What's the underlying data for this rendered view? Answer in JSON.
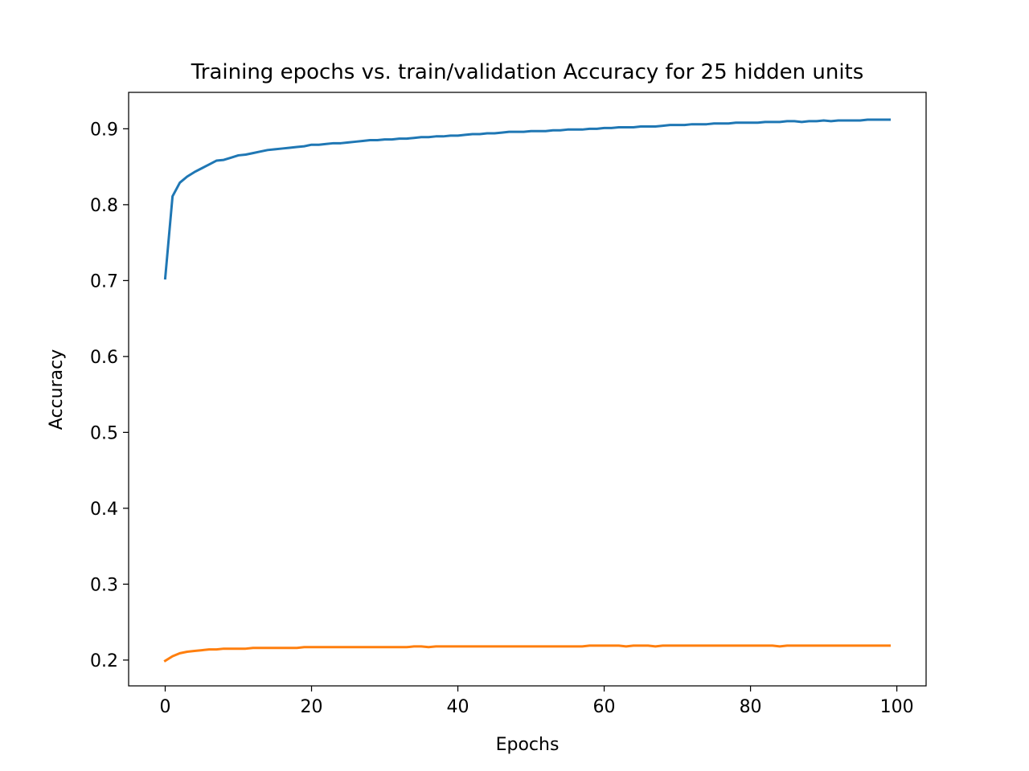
{
  "chart_data": {
    "type": "line",
    "title": "Training epochs vs. train/validation Accuracy for 25 hidden units",
    "xlabel": "Epochs",
    "ylabel": "Accuracy",
    "xlim": [
      -5,
      104
    ],
    "ylim": [
      0.166,
      0.948
    ],
    "xticks": [
      0,
      20,
      40,
      60,
      80,
      100
    ],
    "yticks": [
      0.2,
      0.3,
      0.4,
      0.5,
      0.6,
      0.7,
      0.8,
      0.9
    ],
    "xtick_labels": [
      "0",
      "20",
      "40",
      "60",
      "80",
      "100"
    ],
    "ytick_labels": [
      "0.2",
      "0.3",
      "0.4",
      "0.5",
      "0.6",
      "0.7",
      "0.8",
      "0.9"
    ],
    "grid": false,
    "legend": "none",
    "series": [
      {
        "color": "#1f77b4",
        "x": [
          0,
          1,
          2,
          3,
          4,
          5,
          6,
          7,
          8,
          9,
          10,
          11,
          12,
          13,
          14,
          15,
          16,
          17,
          18,
          19,
          20,
          21,
          22,
          23,
          24,
          25,
          26,
          27,
          28,
          29,
          30,
          31,
          32,
          33,
          34,
          35,
          36,
          37,
          38,
          39,
          40,
          41,
          42,
          43,
          44,
          45,
          46,
          47,
          48,
          49,
          50,
          51,
          52,
          53,
          54,
          55,
          56,
          57,
          58,
          59,
          60,
          61,
          62,
          63,
          64,
          65,
          66,
          67,
          68,
          69,
          70,
          71,
          72,
          73,
          74,
          75,
          76,
          77,
          78,
          79,
          80,
          81,
          82,
          83,
          84,
          85,
          86,
          87,
          88,
          89,
          90,
          91,
          92,
          93,
          94,
          95,
          96,
          97,
          98,
          99
        ],
        "values": [
          0.703,
          0.811,
          0.829,
          0.837,
          0.843,
          0.848,
          0.853,
          0.858,
          0.859,
          0.862,
          0.865,
          0.866,
          0.868,
          0.87,
          0.872,
          0.873,
          0.874,
          0.875,
          0.876,
          0.877,
          0.879,
          0.879,
          0.88,
          0.881,
          0.881,
          0.882,
          0.883,
          0.884,
          0.885,
          0.885,
          0.886,
          0.886,
          0.887,
          0.887,
          0.888,
          0.889,
          0.889,
          0.89,
          0.89,
          0.891,
          0.891,
          0.892,
          0.893,
          0.893,
          0.894,
          0.894,
          0.895,
          0.896,
          0.896,
          0.896,
          0.897,
          0.897,
          0.897,
          0.898,
          0.898,
          0.899,
          0.899,
          0.899,
          0.9,
          0.9,
          0.901,
          0.901,
          0.902,
          0.902,
          0.902,
          0.903,
          0.903,
          0.903,
          0.904,
          0.905,
          0.905,
          0.905,
          0.906,
          0.906,
          0.906,
          0.907,
          0.907,
          0.907,
          0.908,
          0.908,
          0.908,
          0.908,
          0.909,
          0.909,
          0.909,
          0.91,
          0.91,
          0.909,
          0.91,
          0.91,
          0.911,
          0.91,
          0.911,
          0.911,
          0.911,
          0.911,
          0.912,
          0.912,
          0.912,
          0.912
        ]
      },
      {
        "color": "#ff7f0e",
        "x": [
          0,
          1,
          2,
          3,
          4,
          5,
          6,
          7,
          8,
          9,
          10,
          11,
          12,
          13,
          14,
          15,
          16,
          17,
          18,
          19,
          20,
          21,
          22,
          23,
          24,
          25,
          26,
          27,
          28,
          29,
          30,
          31,
          32,
          33,
          34,
          35,
          36,
          37,
          38,
          39,
          40,
          41,
          42,
          43,
          44,
          45,
          46,
          47,
          48,
          49,
          50,
          51,
          52,
          53,
          54,
          55,
          56,
          57,
          58,
          59,
          60,
          61,
          62,
          63,
          64,
          65,
          66,
          67,
          68,
          69,
          70,
          71,
          72,
          73,
          74,
          75,
          76,
          77,
          78,
          79,
          80,
          81,
          82,
          83,
          84,
          85,
          86,
          87,
          88,
          89,
          90,
          91,
          92,
          93,
          94,
          95,
          96,
          97,
          98,
          99
        ],
        "values": [
          0.199,
          0.205,
          0.209,
          0.211,
          0.212,
          0.213,
          0.214,
          0.214,
          0.215,
          0.215,
          0.215,
          0.215,
          0.216,
          0.216,
          0.216,
          0.216,
          0.216,
          0.216,
          0.216,
          0.217,
          0.217,
          0.217,
          0.217,
          0.217,
          0.217,
          0.217,
          0.217,
          0.217,
          0.217,
          0.217,
          0.217,
          0.217,
          0.217,
          0.217,
          0.218,
          0.218,
          0.217,
          0.218,
          0.218,
          0.218,
          0.218,
          0.218,
          0.218,
          0.218,
          0.218,
          0.218,
          0.218,
          0.218,
          0.218,
          0.218,
          0.218,
          0.218,
          0.218,
          0.218,
          0.218,
          0.218,
          0.218,
          0.218,
          0.219,
          0.219,
          0.219,
          0.219,
          0.219,
          0.218,
          0.219,
          0.219,
          0.219,
          0.218,
          0.219,
          0.219,
          0.219,
          0.219,
          0.219,
          0.219,
          0.219,
          0.219,
          0.219,
          0.219,
          0.219,
          0.219,
          0.219,
          0.219,
          0.219,
          0.219,
          0.218,
          0.219,
          0.219,
          0.219,
          0.219,
          0.219,
          0.219,
          0.219,
          0.219,
          0.219,
          0.219,
          0.219,
          0.219,
          0.219,
          0.219,
          0.219
        ]
      }
    ]
  }
}
